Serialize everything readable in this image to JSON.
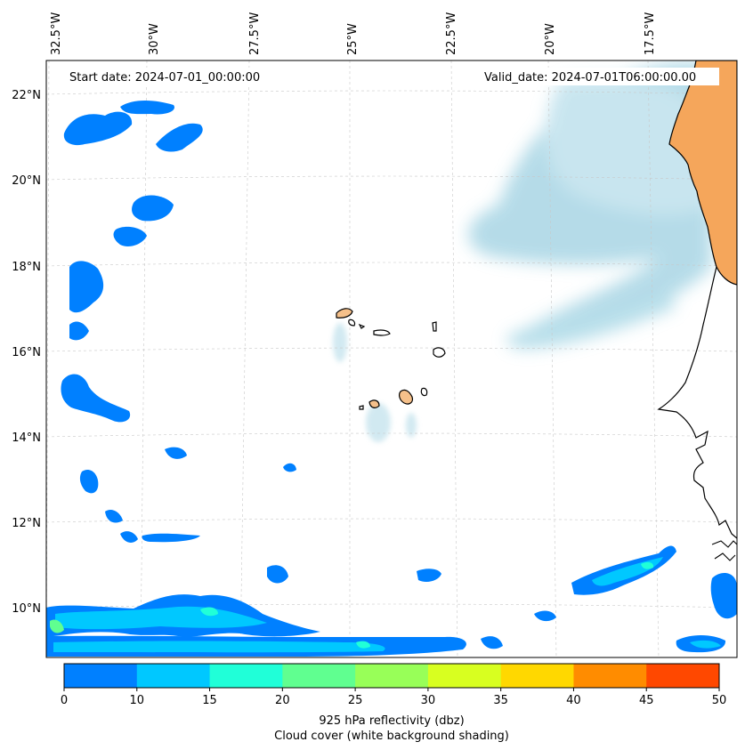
{
  "map": {
    "start_label": "Start date: 2024-07-01_00:00:00",
    "valid_label": "Valid_date: 2024-07-01T06:00:00.00",
    "lon_labels": [
      "32.5°W",
      "30°W",
      "27.5°W",
      "25°W",
      "22.5°W",
      "20°W",
      "17.5°W"
    ],
    "lat_labels": [
      "22°N",
      "20°N",
      "18°N",
      "16°N",
      "14°N",
      "12°N",
      "10°N"
    ]
  },
  "colorbar": {
    "ticks": [
      "0",
      "10",
      "15",
      "20",
      "25",
      "30",
      "35",
      "40",
      "45",
      "50"
    ],
    "colors": [
      "#0080ff",
      "#00c8ff",
      "#20ffd8",
      "#60ff90",
      "#98ff58",
      "#d8ff20",
      "#ffd800",
      "#ff8c00",
      "#ff4800"
    ],
    "label": "925 hPa reflectivity (dbz)",
    "sublabel": "Cloud cover (white background shading)"
  },
  "colors": {
    "land": "#f5a65b",
    "island": "#f5c08a",
    "cloud": "#add8e6",
    "frame": "#000000"
  }
}
